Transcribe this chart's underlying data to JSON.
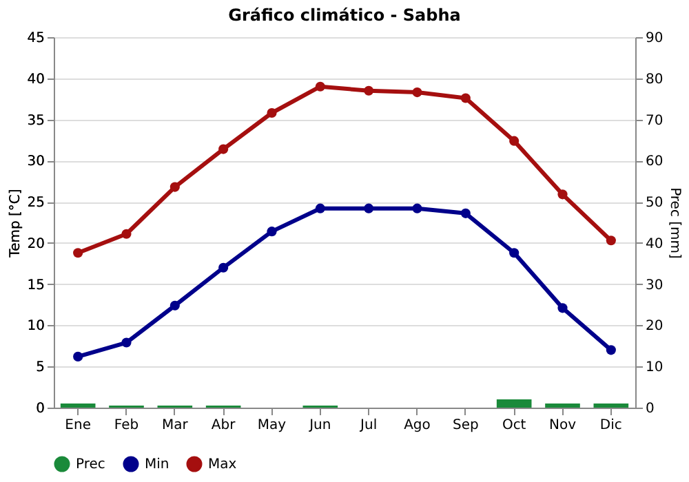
{
  "chart_data": {
    "type": "line",
    "title": "Gráfico climático - Sabha",
    "ylabel": "Temp [°C]",
    "y2label": "Prec [mm]",
    "categories": [
      "Ene",
      "Feb",
      "Mar",
      "Abr",
      "May",
      "Jun",
      "Jul",
      "Ago",
      "Sep",
      "Oct",
      "Nov",
      "Dic"
    ],
    "series": [
      {
        "name": "Prec",
        "type": "bar",
        "axis": "y2",
        "color": "#1a8a3a",
        "values": [
          1,
          0.5,
          0.5,
          0.5,
          0,
          0.5,
          0,
          0,
          0,
          2,
          1,
          1
        ]
      },
      {
        "name": "Min",
        "color": "#00008b",
        "values": [
          6.2,
          7.9,
          12.4,
          17.0,
          21.4,
          24.2,
          24.2,
          24.2,
          23.6,
          18.8,
          12.1,
          7.0
        ]
      },
      {
        "name": "Max",
        "color": "#a50f0f",
        "values": [
          18.8,
          21.1,
          26.8,
          31.4,
          35.8,
          39.0,
          38.5,
          38.3,
          37.6,
          32.4,
          25.9,
          20.3
        ]
      }
    ],
    "ylim": [
      0,
      45
    ],
    "yticks": [
      0,
      5,
      10,
      15,
      20,
      25,
      30,
      35,
      40,
      45
    ],
    "y2lim": [
      0,
      90
    ],
    "y2ticks": [
      0,
      10,
      20,
      30,
      40,
      50,
      60,
      70,
      80,
      90
    ],
    "grid": "y",
    "legend": "bottom",
    "marker": "circle",
    "line_style": "solid"
  }
}
